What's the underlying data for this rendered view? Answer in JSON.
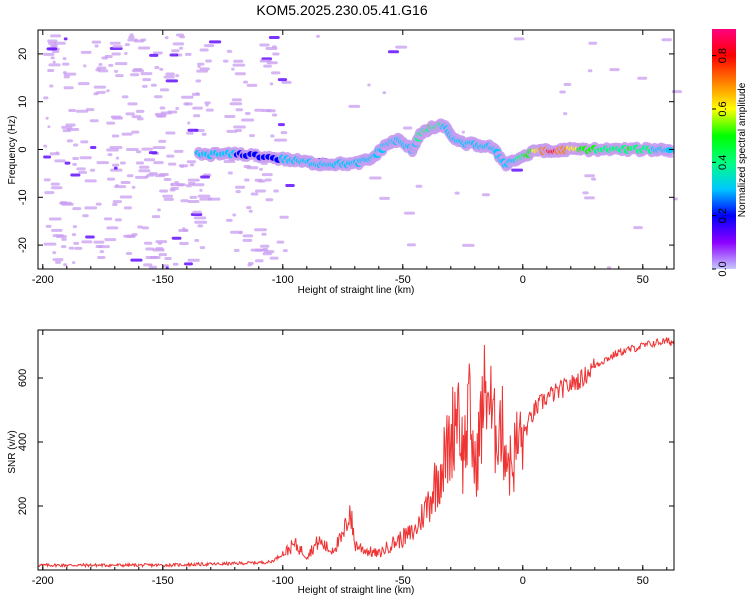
{
  "title": "KOM5.2025.230.05.41.G16",
  "colors": {
    "spectro_low": "#c89cf0",
    "spectro_mid": "#5a00ff",
    "snr_line": "#ee3333",
    "colorbar_stops": [
      "#c8c8ff",
      "#8b00ff",
      "#0000ff",
      "#00c8ff",
      "#00ff80",
      "#00ff00",
      "#ffff00",
      "#ff8000",
      "#ff0000",
      "#ff0080"
    ]
  },
  "chart_data": [
    {
      "type": "heatmap",
      "xlabel": "Height of straight line (km)",
      "ylabel": "Frequency (Hz)",
      "xlim": [
        -202,
        63
      ],
      "ylim": [
        -25,
        25
      ],
      "xticks": [
        -200,
        -150,
        -100,
        -50,
        0,
        50
      ],
      "yticks": [
        -20,
        -10,
        0,
        10,
        20
      ],
      "colorbar": {
        "label": "Normalized spectral amplitude",
        "range": [
          0,
          0.9
        ],
        "ticks": [
          "0.0",
          "0.2",
          "0.4",
          "0.6",
          "0.8"
        ]
      },
      "ridge": [
        {
          "x": -135,
          "y": -1,
          "a": 0.25
        },
        {
          "x": -125,
          "y": -1,
          "a": 0.35
        },
        {
          "x": -115,
          "y": -1,
          "a": 0.15
        },
        {
          "x": -100,
          "y": -2,
          "a": 0.25
        },
        {
          "x": -92,
          "y": -2.5,
          "a": 0.3
        },
        {
          "x": -85,
          "y": -3,
          "a": 0.35
        },
        {
          "x": -78,
          "y": -3,
          "a": 0.3
        },
        {
          "x": -70,
          "y": -3,
          "a": 0.35
        },
        {
          "x": -63,
          "y": -2,
          "a": 0.3
        },
        {
          "x": -57,
          "y": 1,
          "a": 0.35
        },
        {
          "x": -52,
          "y": 2,
          "a": 0.3
        },
        {
          "x": -46,
          "y": 0,
          "a": 0.25
        },
        {
          "x": -43,
          "y": 3,
          "a": 0.4
        },
        {
          "x": -38,
          "y": 4.5,
          "a": 0.45
        },
        {
          "x": -33,
          "y": 5,
          "a": 0.35
        },
        {
          "x": -27,
          "y": 1.5,
          "a": 0.35
        },
        {
          "x": -20,
          "y": 1,
          "a": 0.3
        },
        {
          "x": -13,
          "y": 0.5,
          "a": 0.35
        },
        {
          "x": -7,
          "y": -3,
          "a": 0.25
        },
        {
          "x": 0,
          "y": -1.5,
          "a": 0.4
        },
        {
          "x": 7,
          "y": 0,
          "a": 0.6
        },
        {
          "x": 12,
          "y": -0.5,
          "a": 0.8
        },
        {
          "x": 18,
          "y": 0,
          "a": 0.7
        },
        {
          "x": 25,
          "y": 0,
          "a": 0.5
        },
        {
          "x": 35,
          "y": 0,
          "a": 0.4
        },
        {
          "x": 45,
          "y": 0,
          "a": 0.45
        },
        {
          "x": 55,
          "y": 0,
          "a": 0.35
        },
        {
          "x": 62,
          "y": 0,
          "a": 0.3
        }
      ]
    },
    {
      "type": "line",
      "xlabel": "Height of straight line (km)",
      "ylabel": "SNR (v/v)",
      "xlim": [
        -202,
        63
      ],
      "ylim": [
        0,
        750
      ],
      "xticks": [
        -200,
        -150,
        -100,
        -50,
        0,
        50
      ],
      "yticks": [
        200,
        400,
        600
      ],
      "series": [
        {
          "x": [
            -202,
            -180,
            -150,
            -120,
            -105,
            -100,
            -95,
            -90,
            -85,
            -80,
            -75,
            -72,
            -70,
            -65,
            -60,
            -55,
            -50,
            -45,
            -40,
            -35,
            -30,
            -27,
            -25,
            -22,
            -20,
            -17,
            -15,
            -12,
            -10,
            -7,
            -5,
            -2,
            0,
            5,
            10,
            15,
            20,
            25,
            30,
            35,
            40,
            45,
            50,
            55,
            60,
            63
          ],
          "y": [
            15,
            15,
            15,
            20,
            25,
            50,
            80,
            45,
            90,
            60,
            100,
            190,
            80,
            60,
            50,
            80,
            100,
            120,
            200,
            300,
            400,
            550,
            350,
            500,
            300,
            480,
            600,
            420,
            480,
            380,
            320,
            400,
            420,
            500,
            540,
            560,
            580,
            600,
            640,
            660,
            680,
            690,
            700,
            710,
            715,
            710
          ]
        }
      ]
    }
  ]
}
